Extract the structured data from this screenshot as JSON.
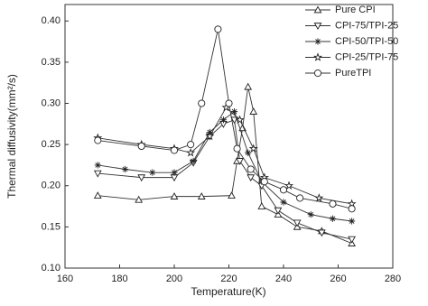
{
  "chart_data": {
    "type": "line",
    "x_label": "Temperature(K)",
    "y_label": "Thermal diffusivity(mm²/s)",
    "xlim": [
      160,
      280
    ],
    "xticks": [
      160,
      180,
      200,
      220,
      240,
      260,
      280
    ],
    "ylim": [
      0.1,
      0.42
    ],
    "yticks": [
      {
        "value": 0.1,
        "label": "0.10"
      },
      0.15,
      {
        "value": 0.2,
        "label": "0.20"
      },
      0.25,
      {
        "value": 0.3,
        "label": "0.30"
      },
      0.35,
      {
        "value": 0.4,
        "label": "0.40"
      }
    ],
    "legend": "top-right",
    "series": [
      {
        "name": "Pure CPI",
        "color": "#333333",
        "marker": "triangle-up",
        "x": [
          172,
          187,
          200,
          210,
          221,
          223,
          225,
          227,
          229,
          232,
          238,
          245,
          254,
          265
        ],
        "values": [
          0.188,
          0.183,
          0.187,
          0.187,
          0.188,
          0.23,
          0.27,
          0.32,
          0.29,
          0.175,
          0.165,
          0.15,
          0.145,
          0.13
        ]
      },
      {
        "name": "CPI-75/TPI-25",
        "color": "#333333",
        "marker": "triangle-down",
        "x": [
          172,
          188,
          200,
          207,
          213,
          218,
          222,
          224,
          228,
          232,
          238,
          245,
          254,
          265
        ],
        "values": [
          0.215,
          0.21,
          0.21,
          0.228,
          0.26,
          0.275,
          0.28,
          0.23,
          0.21,
          0.2,
          0.17,
          0.155,
          0.143,
          0.135
        ]
      },
      {
        "name": "CPI-50/TPI-50",
        "color": "#333333",
        "marker": "asterisk",
        "x": [
          172,
          182,
          192,
          200,
          207,
          213,
          218,
          222,
          227,
          232,
          240,
          250,
          258,
          265
        ],
        "values": [
          0.225,
          0.22,
          0.216,
          0.216,
          0.23,
          0.265,
          0.28,
          0.29,
          0.24,
          0.205,
          0.18,
          0.165,
          0.16,
          0.157
        ]
      },
      {
        "name": "CPI-25/TPI-75",
        "color": "#333333",
        "marker": "star",
        "x": [
          172,
          188,
          200,
          206,
          213,
          219,
          224,
          229,
          233,
          242,
          253,
          265
        ],
        "values": [
          0.258,
          0.25,
          0.245,
          0.24,
          0.26,
          0.295,
          0.28,
          0.245,
          0.21,
          0.2,
          0.185,
          0.178
        ]
      },
      {
        "name": "PureTPI",
        "color": "#333333",
        "marker": "circle",
        "x": [
          172,
          188,
          200,
          206,
          210,
          216,
          220,
          223,
          228,
          233,
          240,
          246,
          258,
          265
        ],
        "values": [
          0.255,
          0.248,
          0.243,
          0.25,
          0.3,
          0.39,
          0.3,
          0.245,
          0.22,
          0.205,
          0.195,
          0.185,
          0.178,
          0.172
        ]
      }
    ]
  }
}
